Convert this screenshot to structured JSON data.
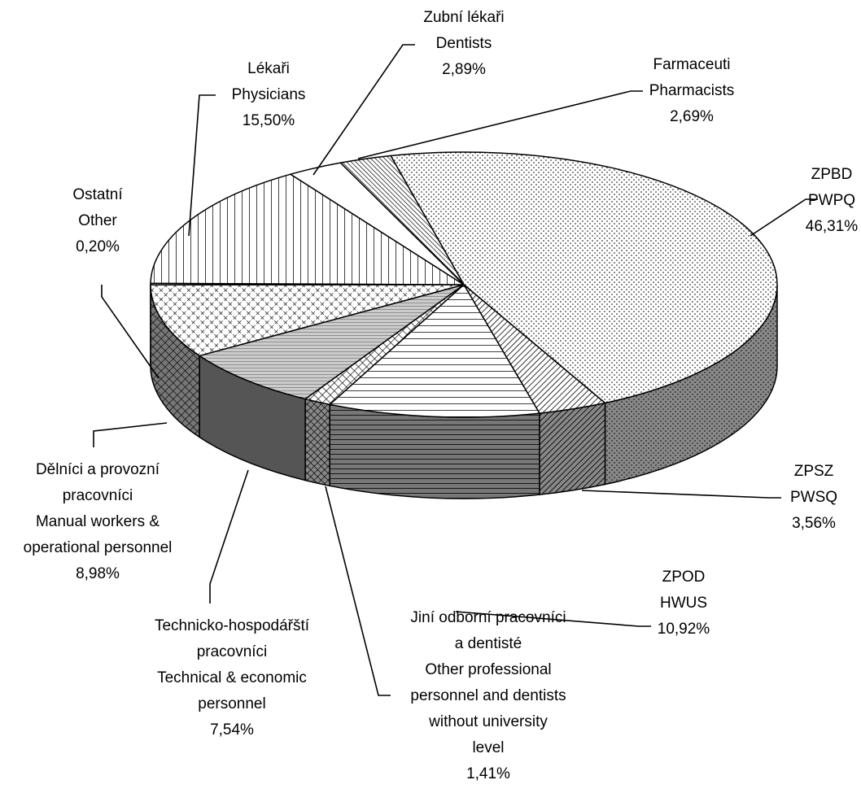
{
  "chart_data": {
    "type": "pie",
    "categories": [
      [
        "ZPBD",
        "PWPQ"
      ],
      [
        "ZPSZ",
        "PWSQ"
      ],
      [
        "ZPOD",
        "HWUS"
      ],
      [
        "Jiní odborní pracovníci",
        "a dentisté",
        "Other professional",
        "personnel and dentists",
        "without university",
        "level"
      ],
      [
        "Technicko-hospodářští",
        "pracovníci",
        "Technical & economic",
        "personnel"
      ],
      [
        "Dělníci a provozní",
        "pracovníci",
        "Manual workers &",
        "operational personnel"
      ],
      [
        "Ostatní",
        "Other"
      ],
      [
        "Lékaři",
        "Physicians"
      ],
      [
        "Zubní lékaři",
        "Dentists"
      ],
      [
        "Farmaceuti",
        "Pharmacists"
      ]
    ],
    "values": [
      46.31,
      3.56,
      10.92,
      1.41,
      7.54,
      8.98,
      0.2,
      15.5,
      2.89,
      2.69
    ],
    "value_labels": [
      "46,31%",
      "3,56%",
      "10,92%",
      "1,41%",
      "7,54%",
      "8,98%",
      "0,20%",
      "15,50%",
      "2,89%",
      "2,69%"
    ]
  }
}
